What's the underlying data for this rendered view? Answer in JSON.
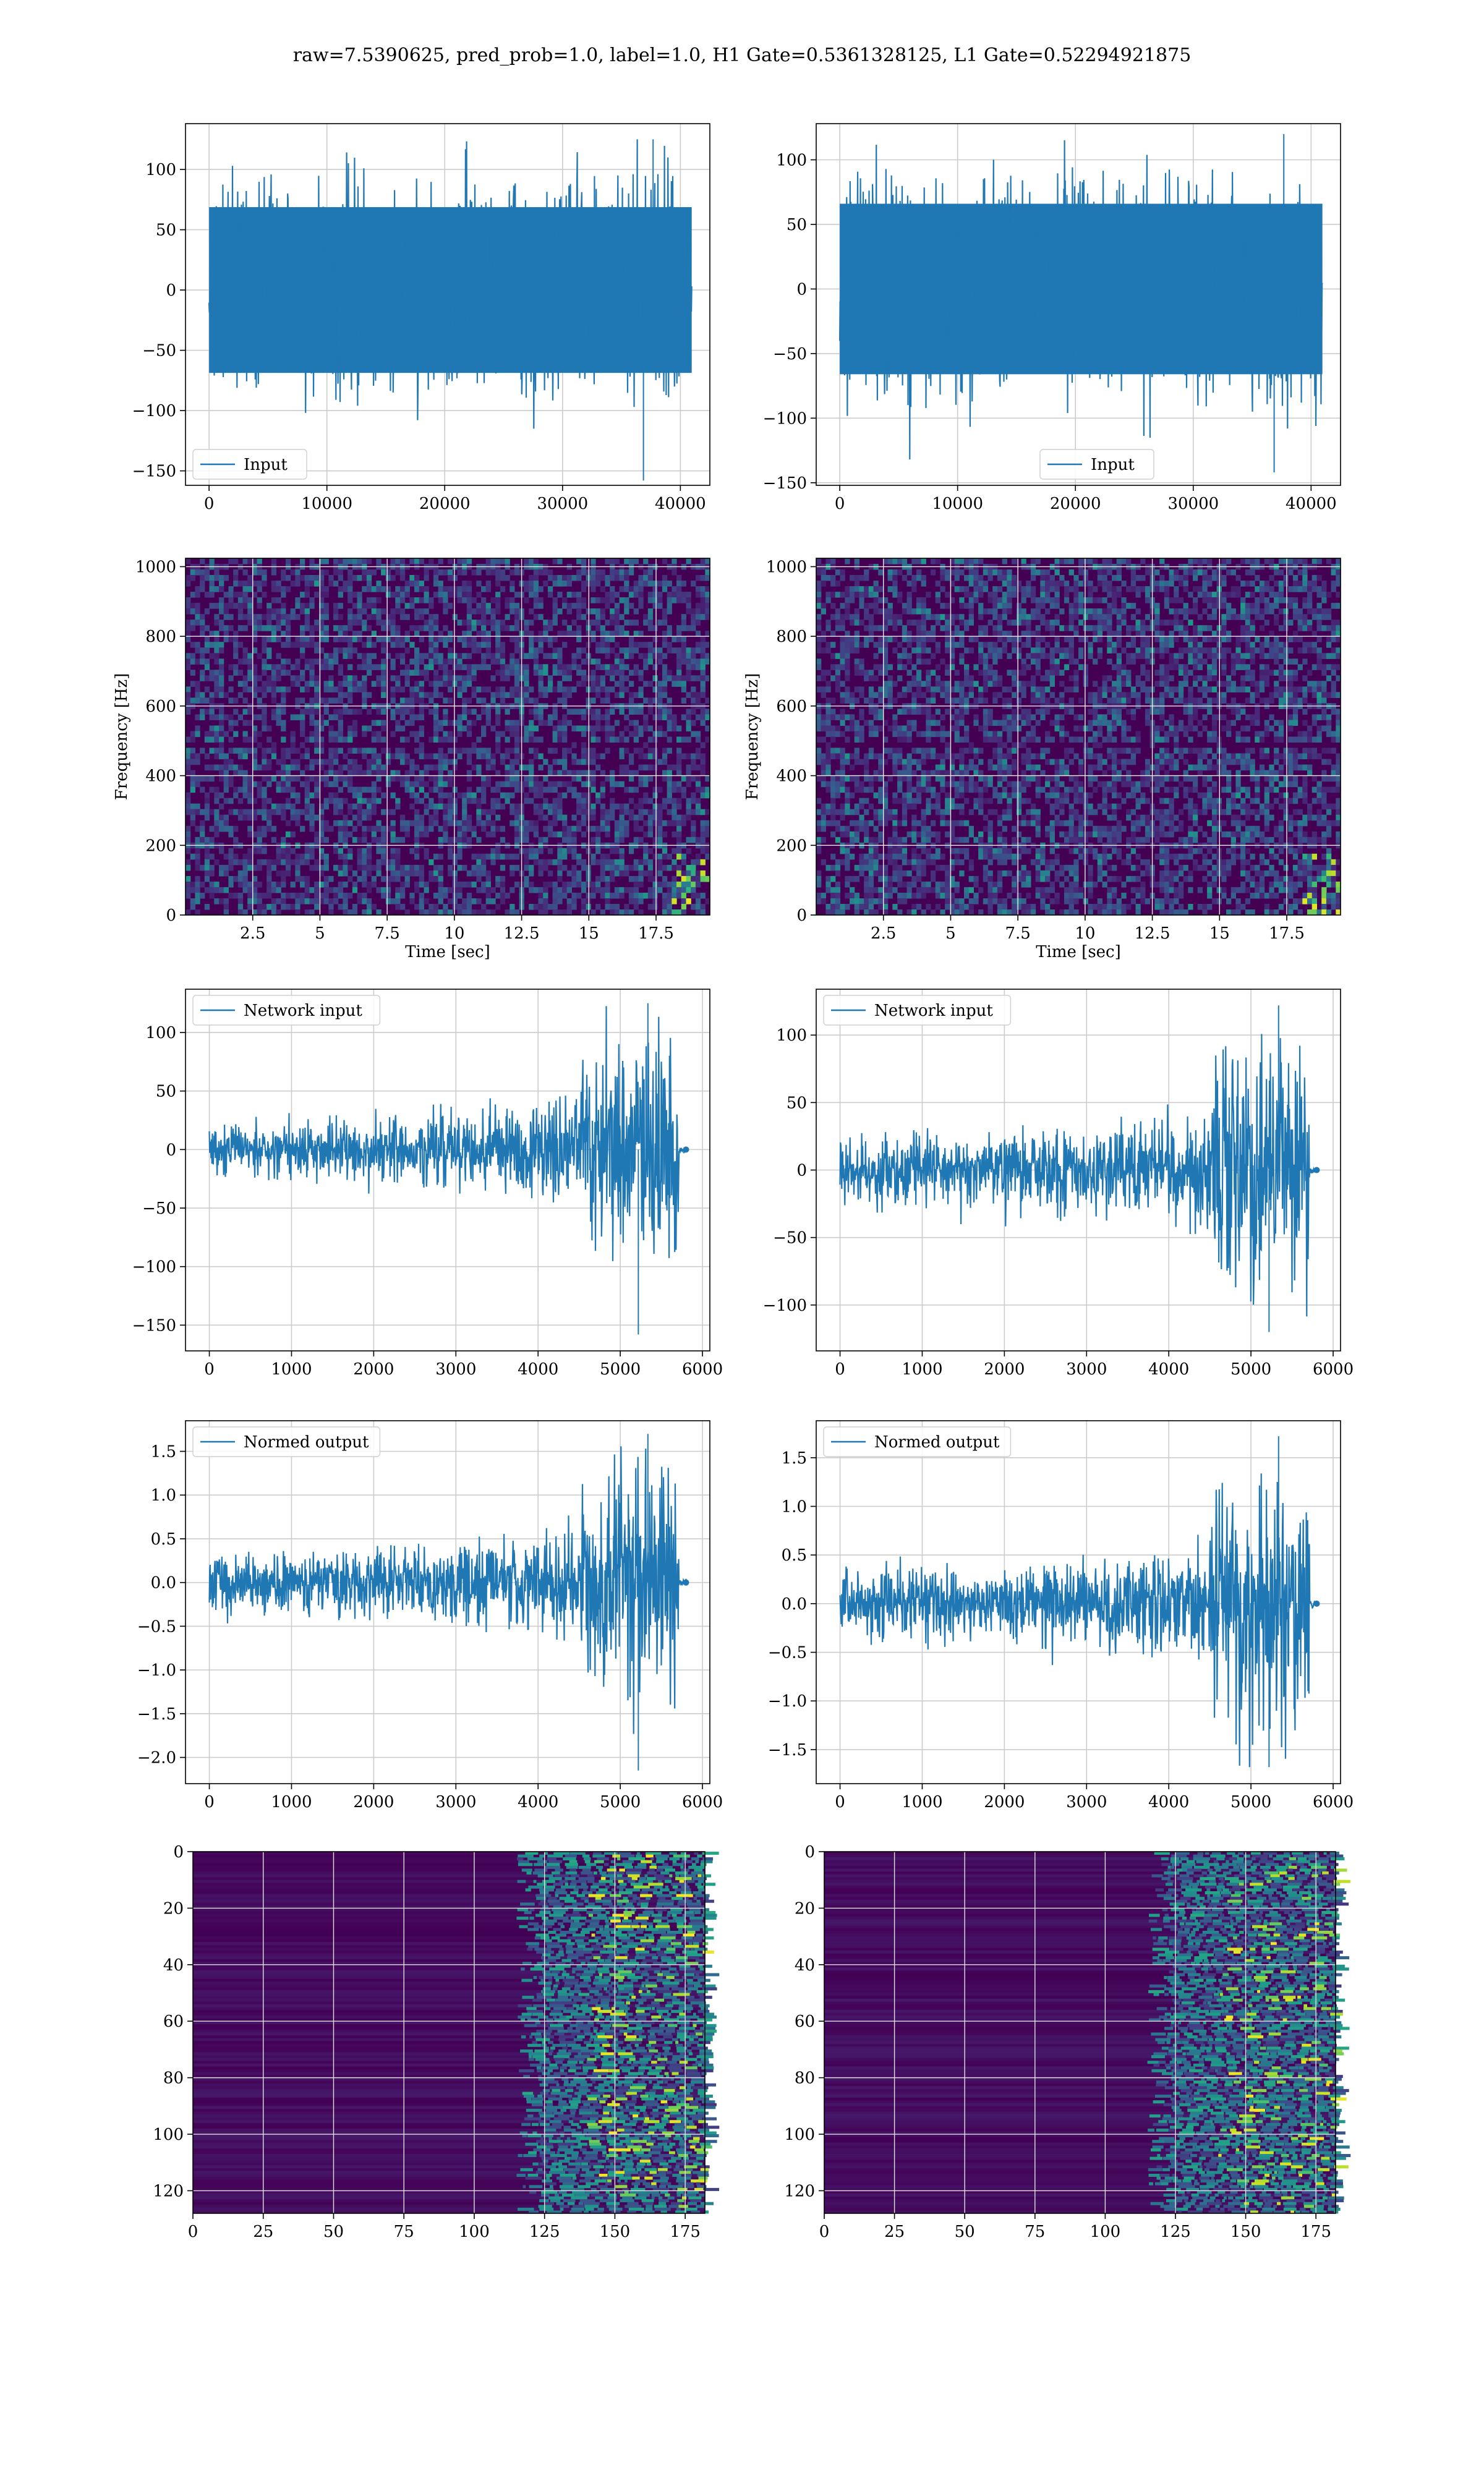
{
  "figure_title": "raw=7.5390625, pred_prob=1.0, label=1.0, H1 Gate=0.5361328125, L1 Gate=0.52294921875",
  "colors": {
    "line": "#1f77b4",
    "grid": "#cccccc",
    "viridis_dark": "#440154"
  },
  "chart_data": [
    {
      "id": "input_h1",
      "type": "line",
      "title": "",
      "xlabel": "",
      "ylabel": "",
      "xlim": [
        -2000,
        42500
      ],
      "ylim": [
        -162,
        138
      ],
      "xticks": [
        0,
        10000,
        20000,
        30000,
        40000
      ],
      "yticks": [
        -150,
        -100,
        -50,
        0,
        50,
        100
      ],
      "grid": true,
      "legend_position": "lower-left",
      "series": [
        {
          "name": "Input",
          "x_range": [
            0,
            40960
          ],
          "envelope": {
            "max": 125,
            "min": -158
          }
        }
      ]
    },
    {
      "id": "input_l1",
      "type": "line",
      "title": "",
      "xlabel": "",
      "ylabel": "",
      "xlim": [
        -2000,
        42500
      ],
      "ylim": [
        -152,
        128
      ],
      "xticks": [
        0,
        10000,
        20000,
        30000,
        40000
      ],
      "yticks": [
        -150,
        -100,
        -50,
        0,
        50,
        100
      ],
      "grid": true,
      "legend_position": "lower-center",
      "series": [
        {
          "name": "Input",
          "x_range": [
            0,
            40960
          ],
          "envelope": {
            "max": 120,
            "min": -142
          }
        }
      ]
    },
    {
      "id": "spectrogram_h1",
      "type": "heatmap",
      "title": "",
      "xlabel": "Time [sec]",
      "ylabel": "Frequency [Hz]",
      "xlim": [
        0,
        19.5
      ],
      "ylim": [
        0,
        1024
      ],
      "xticks": [
        2.5,
        5.0,
        7.5,
        10.0,
        12.5,
        15.0,
        17.5
      ],
      "yticks": [
        0,
        200,
        400,
        600,
        800,
        1000
      ],
      "grid": true,
      "colormap": "viridis"
    },
    {
      "id": "spectrogram_l1",
      "type": "heatmap",
      "title": "",
      "xlabel": "Time [sec]",
      "ylabel": "Frequency [Hz]",
      "xlim": [
        0,
        19.5
      ],
      "ylim": [
        0,
        1024
      ],
      "xticks": [
        2.5,
        5.0,
        7.5,
        10.0,
        12.5,
        15.0,
        17.5
      ],
      "yticks": [
        0,
        200,
        400,
        600,
        800,
        1000
      ],
      "grid": true,
      "colormap": "viridis"
    },
    {
      "id": "network_input_h1",
      "type": "line",
      "title": "",
      "xlabel": "",
      "ylabel": "",
      "xlim": [
        -290,
        6090
      ],
      "ylim": [
        -172,
        137
      ],
      "xticks": [
        0,
        1000,
        2000,
        3000,
        4000,
        5000,
        6000
      ],
      "yticks": [
        -150,
        -100,
        -50,
        0,
        50,
        100
      ],
      "grid": true,
      "legend_position": "upper-left",
      "series": [
        {
          "name": "Network input",
          "x_range": [
            0,
            5800
          ],
          "envelope": {
            "max": 125,
            "min": -158
          }
        }
      ]
    },
    {
      "id": "network_input_l1",
      "type": "line",
      "title": "",
      "xlabel": "",
      "ylabel": "",
      "xlim": [
        -290,
        6090
      ],
      "ylim": [
        -134,
        134
      ],
      "xticks": [
        0,
        1000,
        2000,
        3000,
        4000,
        5000,
        6000
      ],
      "yticks": [
        -100,
        -50,
        0,
        50,
        100
      ],
      "grid": true,
      "legend_position": "upper-left",
      "series": [
        {
          "name": "Network input",
          "x_range": [
            0,
            5800
          ],
          "envelope": {
            "max": 122,
            "min": -120
          }
        }
      ]
    },
    {
      "id": "normed_output_h1",
      "type": "line",
      "title": "",
      "xlabel": "",
      "ylabel": "",
      "xlim": [
        -290,
        6090
      ],
      "ylim": [
        -2.3,
        1.85
      ],
      "xticks": [
        0,
        1000,
        2000,
        3000,
        4000,
        5000,
        6000
      ],
      "yticks": [
        -2.0,
        -1.5,
        -1.0,
        -0.5,
        0.0,
        0.5,
        1.0,
        1.5
      ],
      "grid": true,
      "legend_position": "upper-left",
      "series": [
        {
          "name": "Normed output",
          "x_range": [
            0,
            5800
          ],
          "envelope": {
            "max": 1.7,
            "min": -2.15
          }
        }
      ]
    },
    {
      "id": "normed_output_l1",
      "type": "line",
      "title": "",
      "xlabel": "",
      "ylabel": "",
      "xlim": [
        -290,
        6090
      ],
      "ylim": [
        -1.85,
        1.88
      ],
      "xticks": [
        0,
        1000,
        2000,
        3000,
        4000,
        5000,
        6000
      ],
      "yticks": [
        -1.5,
        -1.0,
        -0.5,
        0.0,
        0.5,
        1.0,
        1.5
      ],
      "grid": true,
      "legend_position": "upper-left",
      "series": [
        {
          "name": "Normed output",
          "x_range": [
            0,
            5800
          ],
          "envelope": {
            "max": 1.72,
            "min": -1.68
          }
        }
      ]
    },
    {
      "id": "feature_map_h1",
      "type": "heatmap",
      "title": "",
      "xlabel": "",
      "ylabel": "",
      "xlim": [
        0,
        182
      ],
      "ylim": [
        128,
        0
      ],
      "xticks": [
        0,
        25,
        50,
        75,
        100,
        125,
        150,
        175
      ],
      "yticks": [
        0,
        20,
        40,
        60,
        80,
        100,
        120
      ],
      "grid": true,
      "colormap": "viridis",
      "activity_onset_x": 125
    },
    {
      "id": "feature_map_l1",
      "type": "heatmap",
      "title": "",
      "xlabel": "",
      "ylabel": "",
      "xlim": [
        0,
        182
      ],
      "ylim": [
        128,
        0
      ],
      "xticks": [
        0,
        25,
        50,
        75,
        100,
        125,
        150,
        175
      ],
      "yticks": [
        0,
        20,
        40,
        60,
        80,
        100,
        120
      ],
      "grid": true,
      "colormap": "viridis",
      "activity_onset_x": 125
    }
  ]
}
